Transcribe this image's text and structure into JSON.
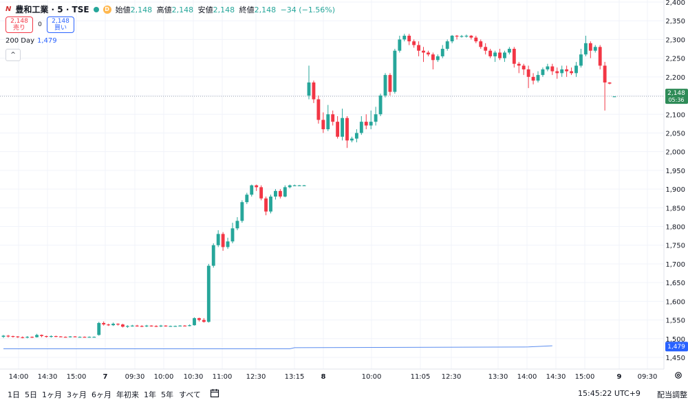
{
  "legend": {
    "symbol": "豊和工業 · 5 · TSE",
    "d_badge": "D",
    "open_label": "始値",
    "open": "2,148",
    "high_label": "高値",
    "high": "2,148",
    "low_label": "安値",
    "low": "2,148",
    "close_label": "終値",
    "close": "2,148",
    "change": "−34 (−1.56%)"
  },
  "trade": {
    "sell_price": "2,148",
    "sell_label": "売り",
    "spread": "0",
    "buy_price": "2,148",
    "buy_label": "買い"
  },
  "ma": {
    "label": "200 Day",
    "value": "1,479"
  },
  "timeframes": [
    "1日",
    "5日",
    "1ヶ月",
    "3ヶ月",
    "6ヶ月",
    "年初来",
    "1年",
    "5年",
    "すべて"
  ],
  "clock": "15:45:22 UTC+9",
  "adjust_label": "配当調整",
  "colors": {
    "up": "#26a69a",
    "down": "#f23645",
    "ma": "#5b8def",
    "price_tag": "#2e8b57",
    "ma_tag": "#2962ff"
  },
  "chart_data": {
    "type": "candlestick",
    "y_ticks": [
      "2,400",
      "2,350",
      "2,300",
      "2,250",
      "2,200",
      "2,150",
      "2,100",
      "2,050",
      "2,000",
      "1,950",
      "1,900",
      "1,850",
      "1,800",
      "1,750",
      "1,700",
      "1,650",
      "1,600",
      "1,550",
      "1,500",
      "1,450"
    ],
    "ylim": [
      1425,
      2400
    ],
    "x_ticks": [
      "14:00",
      "14:30",
      "15:00",
      "7",
      "09:30",
      "10:00",
      "10:30",
      "11:00",
      "12:30",
      "13:15",
      "8",
      "10:00",
      "11:05",
      "12:30",
      "13:30",
      "14:00",
      "14:30",
      "15:00",
      "9",
      "09:30"
    ],
    "last_price_tag": {
      "price": "2,148",
      "countdown": "05:36",
      "value": 2148
    },
    "ma_tag": {
      "value": 1479,
      "label": "1,479"
    },
    "ma_series": [
      {
        "x": 0,
        "y": 1473
      },
      {
        "x": 60,
        "y": 1473
      },
      {
        "x": 61,
        "y": 1476
      },
      {
        "x": 110,
        "y": 1478
      },
      {
        "x": 115,
        "y": 1481
      }
    ],
    "candles": [
      [
        1505,
        1508,
        1502,
        1510
      ],
      [
        1508,
        1507,
        1503,
        1510
      ],
      [
        1507,
        1506,
        1503,
        1508
      ],
      [
        1506,
        1504,
        1502,
        1507
      ],
      [
        1504,
        1503,
        1501,
        1506
      ],
      [
        1503,
        1505,
        1501,
        1507
      ],
      [
        1505,
        1504,
        1502,
        1506
      ],
      [
        1504,
        1510,
        1503,
        1513
      ],
      [
        1510,
        1507,
        1504,
        1511
      ],
      [
        1507,
        1505,
        1503,
        1508
      ],
      [
        1505,
        1507,
        1503,
        1509
      ],
      [
        1507,
        1506,
        1504,
        1508
      ],
      [
        1506,
        1505,
        1504,
        1507
      ],
      [
        1505,
        1504,
        1503,
        1506
      ],
      [
        1504,
        1506,
        1503,
        1507
      ],
      [
        1506,
        1505,
        1504,
        1507
      ],
      [
        1505,
        1505,
        1504,
        1506
      ],
      [
        1505,
        1504,
        1503,
        1506
      ],
      [
        1504,
        1505,
        1503,
        1506
      ],
      [
        1505,
        1505,
        1504,
        1506
      ],
      [
        1510,
        1542,
        1508,
        1545
      ],
      [
        1542,
        1538,
        1535,
        1546
      ],
      [
        1538,
        1536,
        1534,
        1540
      ],
      [
        1536,
        1540,
        1534,
        1543
      ],
      [
        1540,
        1538,
        1535,
        1541
      ],
      [
        1538,
        1532,
        1530,
        1540
      ],
      [
        1532,
        1534,
        1529,
        1536
      ],
      [
        1534,
        1535,
        1532,
        1537
      ],
      [
        1535,
        1534,
        1532,
        1537
      ],
      [
        1534,
        1533,
        1531,
        1536
      ],
      [
        1533,
        1535,
        1531,
        1537
      ],
      [
        1535,
        1534,
        1532,
        1536
      ],
      [
        1534,
        1533,
        1531,
        1536
      ],
      [
        1533,
        1535,
        1531,
        1537
      ],
      [
        1535,
        1534,
        1532,
        1536
      ],
      [
        1534,
        1534,
        1532,
        1535
      ],
      [
        1534,
        1534,
        1533,
        1535
      ],
      [
        1534,
        1535,
        1533,
        1536
      ],
      [
        1535,
        1534,
        1533,
        1536
      ],
      [
        1534,
        1536,
        1533,
        1538
      ],
      [
        1536,
        1555,
        1535,
        1557
      ],
      [
        1555,
        1550,
        1546,
        1556
      ],
      [
        1550,
        1545,
        1543,
        1555
      ],
      [
        1545,
        1695,
        1543,
        1700
      ],
      [
        1695,
        1750,
        1690,
        1755
      ],
      [
        1750,
        1780,
        1745,
        1790
      ],
      [
        1780,
        1745,
        1735,
        1785
      ],
      [
        1745,
        1760,
        1740,
        1770
      ],
      [
        1760,
        1795,
        1755,
        1810
      ],
      [
        1795,
        1815,
        1790,
        1825
      ],
      [
        1815,
        1865,
        1810,
        1870
      ],
      [
        1865,
        1885,
        1860,
        1890
      ],
      [
        1885,
        1910,
        1880,
        1912
      ],
      [
        1910,
        1905,
        1895,
        1912
      ],
      [
        1905,
        1875,
        1870,
        1910
      ],
      [
        1875,
        1840,
        1830,
        1880
      ],
      [
        1840,
        1880,
        1835,
        1885
      ],
      [
        1880,
        1895,
        1872,
        1900
      ],
      [
        1895,
        1880,
        1875,
        1900
      ],
      [
        1880,
        1905,
        1878,
        1910
      ],
      [
        1905,
        1910,
        1902,
        1912
      ],
      [
        1910,
        1910,
        1908,
        1912
      ],
      [
        1910,
        1910,
        1909,
        1911
      ],
      [
        1910,
        1910,
        1909,
        1911
      ],
      [
        2150,
        2185,
        2140,
        2230
      ],
      [
        2185,
        2140,
        2130,
        2190
      ],
      [
        2140,
        2085,
        2075,
        2150
      ],
      [
        2085,
        2060,
        2050,
        2105
      ],
      [
        2060,
        2100,
        2055,
        2125
      ],
      [
        2100,
        2080,
        2070,
        2110
      ],
      [
        2080,
        2040,
        2035,
        2095
      ],
      [
        2040,
        2090,
        2030,
        2115
      ],
      [
        2090,
        2030,
        2010,
        2095
      ],
      [
        2030,
        2035,
        2025,
        2040
      ],
      [
        2035,
        2050,
        2025,
        2060
      ],
      [
        2050,
        2080,
        2045,
        2095
      ],
      [
        2080,
        2070,
        2060,
        2100
      ],
      [
        2070,
        2080,
        2060,
        2110
      ],
      [
        2080,
        2100,
        2070,
        2120
      ],
      [
        2100,
        2150,
        2095,
        2155
      ],
      [
        2150,
        2205,
        2145,
        2210
      ],
      [
        2205,
        2160,
        2150,
        2210
      ],
      [
        2160,
        2270,
        2155,
        2275
      ],
      [
        2270,
        2300,
        2265,
        2310
      ],
      [
        2300,
        2310,
        2295,
        2315
      ],
      [
        2310,
        2295,
        2285,
        2315
      ],
      [
        2295,
        2285,
        2278,
        2300
      ],
      [
        2285,
        2270,
        2255,
        2295
      ],
      [
        2270,
        2265,
        2240,
        2280
      ],
      [
        2265,
        2260,
        2255,
        2270
      ],
      [
        2260,
        2245,
        2220,
        2265
      ],
      [
        2245,
        2255,
        2240,
        2260
      ],
      [
        2255,
        2275,
        2250,
        2285
      ],
      [
        2275,
        2295,
        2270,
        2300
      ],
      [
        2295,
        2310,
        2290,
        2312
      ],
      [
        2310,
        2308,
        2300,
        2312
      ],
      [
        2308,
        2309,
        2305,
        2312
      ],
      [
        2309,
        2310,
        2305,
        2313
      ],
      [
        2310,
        2305,
        2300,
        2312
      ],
      [
        2305,
        2295,
        2290,
        2310
      ],
      [
        2295,
        2280,
        2275,
        2300
      ],
      [
        2280,
        2270,
        2260,
        2290
      ],
      [
        2270,
        2255,
        2250,
        2275
      ],
      [
        2255,
        2265,
        2240,
        2270
      ],
      [
        2265,
        2250,
        2245,
        2275
      ],
      [
        2250,
        2265,
        2240,
        2270
      ],
      [
        2265,
        2275,
        2260,
        2280
      ],
      [
        2275,
        2235,
        2225,
        2280
      ],
      [
        2235,
        2230,
        2210,
        2240
      ],
      [
        2230,
        2220,
        2205,
        2235
      ],
      [
        2220,
        2200,
        2170,
        2230
      ],
      [
        2200,
        2190,
        2180,
        2210
      ],
      [
        2190,
        2205,
        2185,
        2215
      ],
      [
        2205,
        2220,
        2200,
        2225
      ],
      [
        2220,
        2228,
        2215,
        2235
      ],
      [
        2228,
        2215,
        2205,
        2235
      ],
      [
        2215,
        2210,
        2195,
        2225
      ],
      [
        2210,
        2220,
        2200,
        2230
      ],
      [
        2220,
        2215,
        2200,
        2230
      ],
      [
        2215,
        2210,
        2205,
        2225
      ],
      [
        2210,
        2230,
        2200,
        2240
      ],
      [
        2230,
        2260,
        2225,
        2275
      ],
      [
        2260,
        2290,
        2255,
        2310
      ],
      [
        2290,
        2270,
        2250,
        2295
      ],
      [
        2270,
        2280,
        2265,
        2285
      ],
      [
        2280,
        2230,
        2220,
        2285
      ],
      [
        2230,
        2185,
        2110,
        2240
      ],
      [
        2185,
        2182,
        2180,
        2186
      ],
      [
        2148,
        2148,
        2148,
        2148
      ]
    ]
  }
}
